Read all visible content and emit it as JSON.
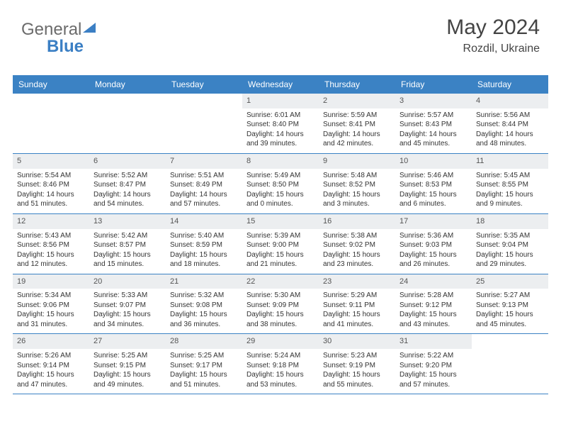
{
  "logo": {
    "part1": "General",
    "part2": "Blue"
  },
  "header": {
    "month_title": "May 2024",
    "location": "Rozdil, Ukraine"
  },
  "colors": {
    "header_bg": "#3b82c4",
    "daynum_bg": "#eceef0",
    "text": "#333333",
    "logo_gray": "#6b6b6b",
    "logo_blue": "#3b7fc4"
  },
  "day_names": [
    "Sunday",
    "Monday",
    "Tuesday",
    "Wednesday",
    "Thursday",
    "Friday",
    "Saturday"
  ],
  "weeks": [
    [
      {
        "empty": true
      },
      {
        "empty": true
      },
      {
        "empty": true
      },
      {
        "day": "1",
        "sunrise": "Sunrise: 6:01 AM",
        "sunset": "Sunset: 8:40 PM",
        "daylight1": "Daylight: 14 hours",
        "daylight2": "and 39 minutes."
      },
      {
        "day": "2",
        "sunrise": "Sunrise: 5:59 AM",
        "sunset": "Sunset: 8:41 PM",
        "daylight1": "Daylight: 14 hours",
        "daylight2": "and 42 minutes."
      },
      {
        "day": "3",
        "sunrise": "Sunrise: 5:57 AM",
        "sunset": "Sunset: 8:43 PM",
        "daylight1": "Daylight: 14 hours",
        "daylight2": "and 45 minutes."
      },
      {
        "day": "4",
        "sunrise": "Sunrise: 5:56 AM",
        "sunset": "Sunset: 8:44 PM",
        "daylight1": "Daylight: 14 hours",
        "daylight2": "and 48 minutes."
      }
    ],
    [
      {
        "day": "5",
        "sunrise": "Sunrise: 5:54 AM",
        "sunset": "Sunset: 8:46 PM",
        "daylight1": "Daylight: 14 hours",
        "daylight2": "and 51 minutes."
      },
      {
        "day": "6",
        "sunrise": "Sunrise: 5:52 AM",
        "sunset": "Sunset: 8:47 PM",
        "daylight1": "Daylight: 14 hours",
        "daylight2": "and 54 minutes."
      },
      {
        "day": "7",
        "sunrise": "Sunrise: 5:51 AM",
        "sunset": "Sunset: 8:49 PM",
        "daylight1": "Daylight: 14 hours",
        "daylight2": "and 57 minutes."
      },
      {
        "day": "8",
        "sunrise": "Sunrise: 5:49 AM",
        "sunset": "Sunset: 8:50 PM",
        "daylight1": "Daylight: 15 hours",
        "daylight2": "and 0 minutes."
      },
      {
        "day": "9",
        "sunrise": "Sunrise: 5:48 AM",
        "sunset": "Sunset: 8:52 PM",
        "daylight1": "Daylight: 15 hours",
        "daylight2": "and 3 minutes."
      },
      {
        "day": "10",
        "sunrise": "Sunrise: 5:46 AM",
        "sunset": "Sunset: 8:53 PM",
        "daylight1": "Daylight: 15 hours",
        "daylight2": "and 6 minutes."
      },
      {
        "day": "11",
        "sunrise": "Sunrise: 5:45 AM",
        "sunset": "Sunset: 8:55 PM",
        "daylight1": "Daylight: 15 hours",
        "daylight2": "and 9 minutes."
      }
    ],
    [
      {
        "day": "12",
        "sunrise": "Sunrise: 5:43 AM",
        "sunset": "Sunset: 8:56 PM",
        "daylight1": "Daylight: 15 hours",
        "daylight2": "and 12 minutes."
      },
      {
        "day": "13",
        "sunrise": "Sunrise: 5:42 AM",
        "sunset": "Sunset: 8:57 PM",
        "daylight1": "Daylight: 15 hours",
        "daylight2": "and 15 minutes."
      },
      {
        "day": "14",
        "sunrise": "Sunrise: 5:40 AM",
        "sunset": "Sunset: 8:59 PM",
        "daylight1": "Daylight: 15 hours",
        "daylight2": "and 18 minutes."
      },
      {
        "day": "15",
        "sunrise": "Sunrise: 5:39 AM",
        "sunset": "Sunset: 9:00 PM",
        "daylight1": "Daylight: 15 hours",
        "daylight2": "and 21 minutes."
      },
      {
        "day": "16",
        "sunrise": "Sunrise: 5:38 AM",
        "sunset": "Sunset: 9:02 PM",
        "daylight1": "Daylight: 15 hours",
        "daylight2": "and 23 minutes."
      },
      {
        "day": "17",
        "sunrise": "Sunrise: 5:36 AM",
        "sunset": "Sunset: 9:03 PM",
        "daylight1": "Daylight: 15 hours",
        "daylight2": "and 26 minutes."
      },
      {
        "day": "18",
        "sunrise": "Sunrise: 5:35 AM",
        "sunset": "Sunset: 9:04 PM",
        "daylight1": "Daylight: 15 hours",
        "daylight2": "and 29 minutes."
      }
    ],
    [
      {
        "day": "19",
        "sunrise": "Sunrise: 5:34 AM",
        "sunset": "Sunset: 9:06 PM",
        "daylight1": "Daylight: 15 hours",
        "daylight2": "and 31 minutes."
      },
      {
        "day": "20",
        "sunrise": "Sunrise: 5:33 AM",
        "sunset": "Sunset: 9:07 PM",
        "daylight1": "Daylight: 15 hours",
        "daylight2": "and 34 minutes."
      },
      {
        "day": "21",
        "sunrise": "Sunrise: 5:32 AM",
        "sunset": "Sunset: 9:08 PM",
        "daylight1": "Daylight: 15 hours",
        "daylight2": "and 36 minutes."
      },
      {
        "day": "22",
        "sunrise": "Sunrise: 5:30 AM",
        "sunset": "Sunset: 9:09 PM",
        "daylight1": "Daylight: 15 hours",
        "daylight2": "and 38 minutes."
      },
      {
        "day": "23",
        "sunrise": "Sunrise: 5:29 AM",
        "sunset": "Sunset: 9:11 PM",
        "daylight1": "Daylight: 15 hours",
        "daylight2": "and 41 minutes."
      },
      {
        "day": "24",
        "sunrise": "Sunrise: 5:28 AM",
        "sunset": "Sunset: 9:12 PM",
        "daylight1": "Daylight: 15 hours",
        "daylight2": "and 43 minutes."
      },
      {
        "day": "25",
        "sunrise": "Sunrise: 5:27 AM",
        "sunset": "Sunset: 9:13 PM",
        "daylight1": "Daylight: 15 hours",
        "daylight2": "and 45 minutes."
      }
    ],
    [
      {
        "day": "26",
        "sunrise": "Sunrise: 5:26 AM",
        "sunset": "Sunset: 9:14 PM",
        "daylight1": "Daylight: 15 hours",
        "daylight2": "and 47 minutes."
      },
      {
        "day": "27",
        "sunrise": "Sunrise: 5:25 AM",
        "sunset": "Sunset: 9:15 PM",
        "daylight1": "Daylight: 15 hours",
        "daylight2": "and 49 minutes."
      },
      {
        "day": "28",
        "sunrise": "Sunrise: 5:25 AM",
        "sunset": "Sunset: 9:17 PM",
        "daylight1": "Daylight: 15 hours",
        "daylight2": "and 51 minutes."
      },
      {
        "day": "29",
        "sunrise": "Sunrise: 5:24 AM",
        "sunset": "Sunset: 9:18 PM",
        "daylight1": "Daylight: 15 hours",
        "daylight2": "and 53 minutes."
      },
      {
        "day": "30",
        "sunrise": "Sunrise: 5:23 AM",
        "sunset": "Sunset: 9:19 PM",
        "daylight1": "Daylight: 15 hours",
        "daylight2": "and 55 minutes."
      },
      {
        "day": "31",
        "sunrise": "Sunrise: 5:22 AM",
        "sunset": "Sunset: 9:20 PM",
        "daylight1": "Daylight: 15 hours",
        "daylight2": "and 57 minutes."
      },
      {
        "empty": true
      }
    ]
  ]
}
